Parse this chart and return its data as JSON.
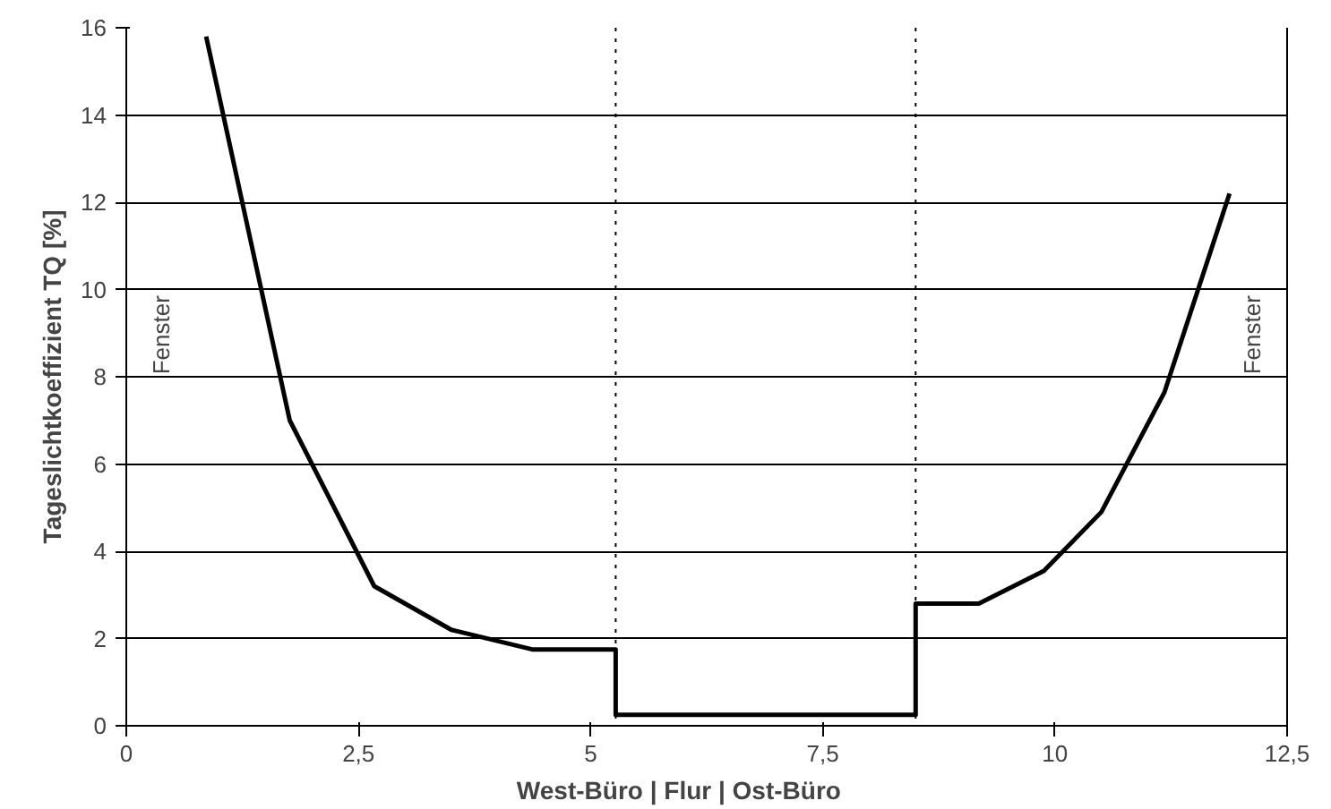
{
  "chart_data": {
    "type": "line",
    "ylabel": "Tageslichtkoeffizient TQ [%]",
    "xlabel": "West-Büro   |   Flur   |   Ost-Büro",
    "series": [
      {
        "color": "#000000",
        "x": [
          0.86,
          1.76,
          2.67,
          3.5,
          4.37,
          5.27,
          5.27,
          8.5,
          8.5,
          9.18,
          9.88,
          10.5,
          11.18,
          11.88
        ],
        "values": [
          15.8,
          7.0,
          3.2,
          2.2,
          1.75,
          1.75,
          0.25,
          0.25,
          2.8,
          2.8,
          3.55,
          4.9,
          7.65,
          12.2
        ]
      }
    ],
    "xlim": [
      0,
      12.5
    ],
    "xticks": [
      0,
      {
        "value": 2.5,
        "label": "2,5"
      },
      5,
      {
        "value": 7.5,
        "label": "7,5"
      },
      10,
      {
        "value": 12.5,
        "label": "12,5"
      }
    ],
    "ylim": [
      0,
      16
    ],
    "yticks": [
      0,
      2,
      4,
      6,
      8,
      10,
      12,
      14,
      16
    ],
    "grid": "y",
    "marker": "none",
    "line_style": "solid",
    "ref_lines": [
      {
        "axis": "x",
        "value": 5.27,
        "line_style": "dotted",
        "color": "#000000"
      },
      {
        "axis": "x",
        "value": 8.5,
        "line_style": "dotted",
        "color": "#000000"
      }
    ],
    "annotations": [
      "Fenster",
      "Fenster"
    ]
  }
}
